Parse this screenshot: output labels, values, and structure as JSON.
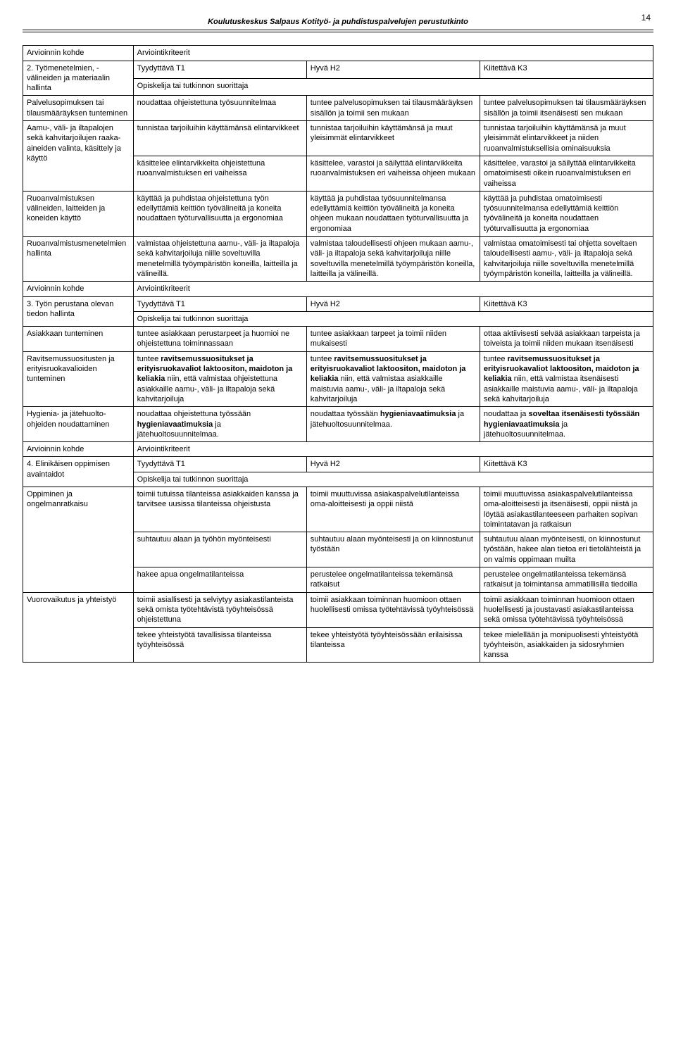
{
  "page_number": "14",
  "header_title": "Koulutuskeskus Salpaus Kotityö- ja puhdistuspalvelujen perustutkinto",
  "blocks": [
    {
      "kohde_label": "Arvioinnin kohde",
      "kriteerit_label": "Arviointikriteerit",
      "perustana_label": "2. Työmenetelmien, -välineiden ja materiaalin hallinta",
      "t1": "Tyydyttävä T1",
      "h2": "Hyvä H2",
      "k3": "Kiitettävä K3",
      "subhead": "Opiskelija tai tutkinnon suorittaja",
      "rows": [
        {
          "c1": "Palvelusopimuksen tai tilausmääräyksen tunteminen",
          "c2": "noudattaa ohjeistettuna työsuunnitelmaa",
          "c3": "tuntee palvelusopimuksen tai tilausmääräyksen sisällön ja toimii sen mukaan",
          "c4": "tuntee palvelusopimuksen tai tilausmääräyksen sisällön ja toimii itsenäisesti sen mukaan"
        },
        {
          "c1": "Aamu-, väli- ja iltapalojen sekä kahvitarjoilujen raaka-aineiden valinta, käsittely ja käyttö",
          "sub": [
            {
              "c2": "tunnistaa tarjoiluihin käyttämänsä elintarvikkeet",
              "c3": "tunnistaa tarjoiluihin käyttämänsä ja muut yleisimmät elintarvikkeet",
              "c4": "tunnistaa tarjoiluihin käyttämänsä ja muut yleisimmät elintarvikkeet ja niiden ruoanvalmistuksellisia ominaisuuksia"
            },
            {
              "c2": "käsittelee elintarvikkeita ohjeistettuna ruoanvalmistuksen eri vaiheissa",
              "c3": "käsittelee, varastoi ja säilyttää elintarvikkeita ruoanvalmistuksen eri vaiheissa ohjeen mukaan",
              "c4": "käsittelee, varastoi ja säilyttää elintarvikkeita omatoimisesti oikein ruoanvalmistuksen eri vaiheissa"
            }
          ]
        },
        {
          "c1": "Ruoanvalmistuksen välineiden, laitteiden ja koneiden käyttö",
          "c2": "käyttää ja puhdistaa ohjeistettuna työn edellyttämiä keittiön työvälineitä ja koneita noudattaen työturvallisuutta ja ergonomiaa",
          "c3": "käyttää ja puhdistaa työsuunnitelmansa edellyttämiä keittiön työvälineitä ja koneita ohjeen mukaan noudattaen työturvallisuutta ja ergonomiaa",
          "c4": "käyttää ja puhdistaa omatoimisesti työsuunnitelmansa edellyttämiä keittiön työvälineitä ja koneita noudattaen työturvallisuutta ja ergonomiaa"
        },
        {
          "c1": "Ruoanvalmistusmenetelmien hallinta",
          "c2": "valmistaa ohjeistettuna aamu-, väli- ja iltapaloja sekä kahvitarjoiluja niille soveltuvilla menetelmillä työympäristön koneilla, laitteilla ja välineillä.",
          "c3": "valmistaa taloudellisesti ohjeen mukaan aamu-, väli- ja iltapaloja sekä kahvitarjoiluja niille soveltuvilla menetelmillä työympäristön koneilla, laitteilla ja välineillä.",
          "c4": "valmistaa omatoimisesti tai ohjetta soveltaen taloudellisesti aamu-, väli- ja iltapaloja sekä kahvitarjoiluja niille soveltuvilla menetelmillä työympäristön koneilla, laitteilla ja välineillä."
        }
      ]
    },
    {
      "kohde_label": "Arvioinnin kohde",
      "kriteerit_label": "Arviointikriteerit",
      "perustana_label": "3. Työn perustana olevan tiedon hallinta",
      "t1": "Tyydyttävä T1",
      "h2": "Hyvä H2",
      "k3": "Kiitettävä K3",
      "subhead": "Opiskelija tai tutkinnon suorittaja",
      "rows": [
        {
          "c1": "Asiakkaan tunteminen",
          "c2": "tuntee asiakkaan perustarpeet ja huomioi ne ohjeistettuna toiminnassaan",
          "c3": "tuntee asiakkaan tarpeet ja toimii niiden mukaisesti",
          "c4": "ottaa aktiivisesti selvää asiakkaan tarpeista ja toiveista ja toimii niiden mukaan itsenäisesti"
        },
        {
          "c1": "Ravitsemussuositusten ja erityisruokavalioiden tunteminen",
          "c2_html": "tuntee <b>ravitsemussuositukset ja erityisruokavaliot laktoositon, maidoton ja keliakia</b> niin, että valmistaa ohjeistettuna asiakkaille aamu-, väli- ja iltapaloja sekä kahvitarjoiluja",
          "c3_html": "tuntee <b>ravitsemussuositukset ja erityisruokavaliot laktoositon, maidoton ja keliakia</b> niin, että valmistaa asiakkaille maistuvia aamu-, väli- ja iltapaloja sekä kahvitarjoiluja",
          "c4_html": "tuntee <b>ravitsemussuositukset ja erityisruokavaliot laktoositon, maidoton ja keliakia</b> niin, että valmistaa itsenäisesti asiakkaille maistuvia aamu-, väli- ja iltapaloja sekä kahvitarjoiluja"
        },
        {
          "c1": "Hygienia- ja jätehuolto-ohjeiden noudattaminen",
          "c2_html": "noudattaa ohjeistettuna työssään <b>hygieniavaatimuksia</b> ja jätehuoltosuunnitelmaa.",
          "c3_html": "noudattaa työssään <b>hygieniavaatimuksia</b> ja jätehuoltosuunnitelmaa.",
          "c4_html": "noudattaa ja <b>soveltaa itsenäisesti työssään hygieniavaatimuksia</b> ja jätehuoltosuunnitelmaa."
        }
      ]
    },
    {
      "kohde_label": "Arvioinnin kohde",
      "kriteerit_label": "Arviointikriteerit",
      "perustana_label": "4. Elinikäisen oppimisen avaintaidot",
      "t1": "Tyydyttävä T1",
      "h2": "Hyvä H2",
      "k3": "Kiitettävä K3",
      "subhead": "Opiskelija tai tutkinnon suorittaja",
      "rows": [
        {
          "c1": "Oppiminen ja ongelmanratkaisu",
          "sub": [
            {
              "c2": "toimii tutuissa tilanteissa asiakkaiden kanssa ja tarvitsee uusissa tilanteissa ohjeistusta",
              "c3": "toimii muuttuvissa asiakaspalvelutilanteissa oma-aloitteisesti ja oppii niistä",
              "c4": "toimii muuttuvissa asiakaspalvelutilanteissa oma-aloitteisesti ja itsenäisesti, oppii niistä ja löytää asiakastilanteeseen parhaiten sopivan toimintatavan ja ratkaisun"
            },
            {
              "c2": "suhtautuu alaan ja työhön myönteisesti",
              "c3": "suhtautuu alaan myönteisesti ja on kiinnostunut työstään",
              "c4": "suhtautuu alaan myönteisesti, on kiinnostunut työstään, hakee alan tietoa eri tietolähteistä ja on valmis oppimaan muilta"
            },
            {
              "c2": "hakee apua ongelmatilanteissa",
              "c3": "perustelee ongelmatilanteissa tekemänsä ratkaisut",
              "c4": "perustelee ongelmatilanteissa tekemänsä ratkaisut ja toimintansa ammatillisilla tiedoilla"
            }
          ]
        },
        {
          "c1": "Vuorovaikutus ja yhteistyö",
          "sub": [
            {
              "c2": "toimii asiallisesti ja selviytyy asiakastilanteista sekä omista työtehtävistä työyhteisössä ohjeistettuna",
              "c3": "toimii asiakkaan toiminnan huomioon ottaen huolellisesti omissa työtehtävissä työyhteisössä",
              "c4": "toimii asiakkaan toiminnan huomioon ottaen huolellisesti ja joustavasti asiakastilanteissa sekä omissa työtehtävissä työyhteisössä"
            },
            {
              "c2": "tekee yhteistyötä tavallisissa tilanteissa työyhteisössä",
              "c3": "tekee yhteistyötä työyhteisössään erilaisissa tilanteissa",
              "c4": "tekee mielellään ja monipuolisesti yhteistyötä työyhteisön, asiakkaiden ja sidosryhmien kanssa"
            }
          ]
        }
      ]
    }
  ]
}
